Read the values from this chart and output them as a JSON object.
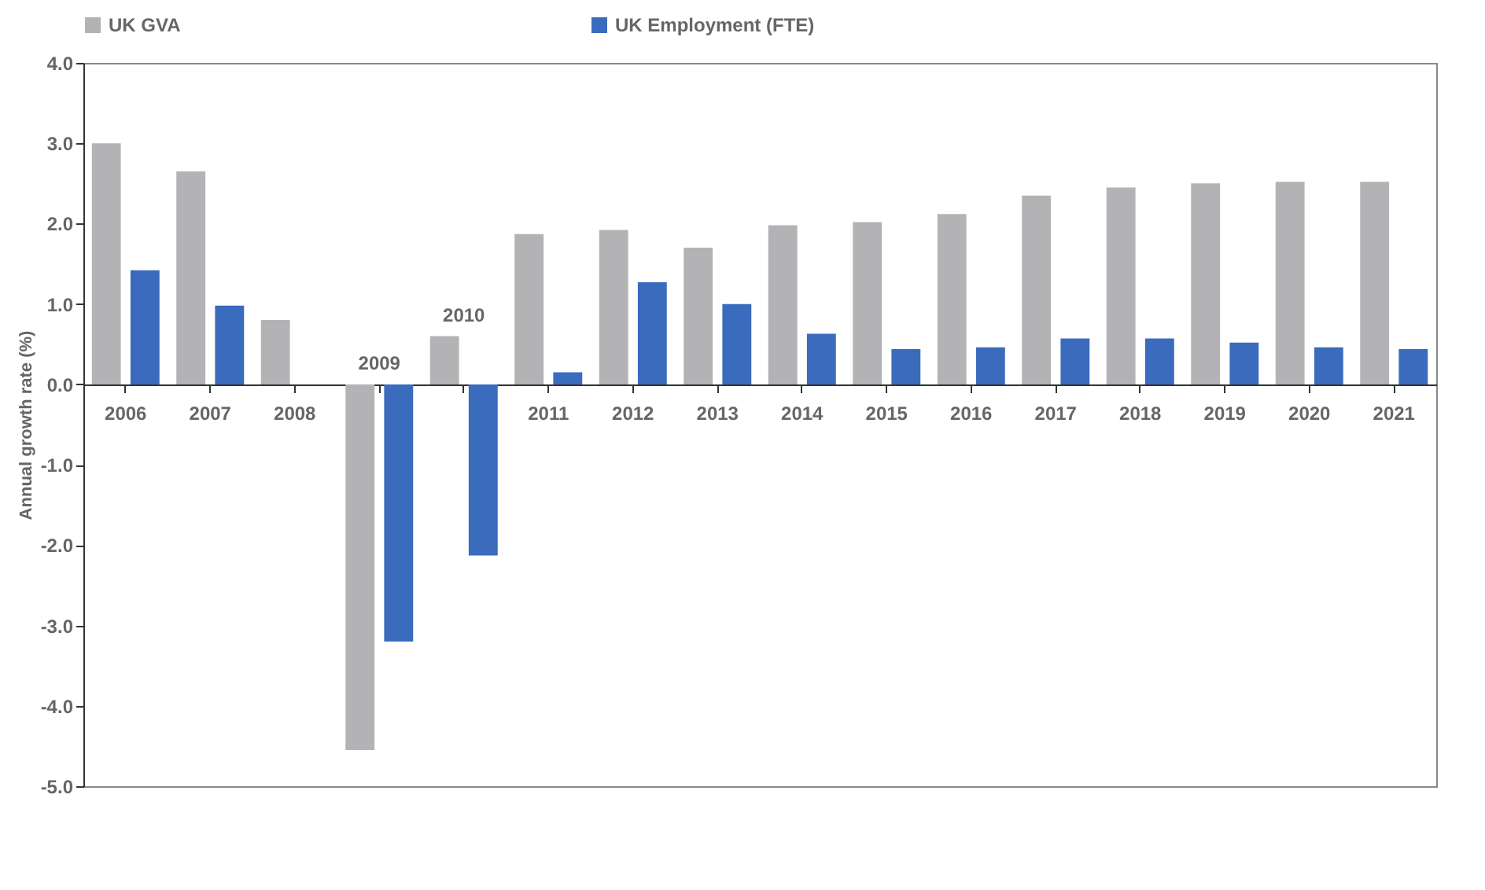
{
  "chart_data": {
    "type": "bar",
    "ylabel": "Annual growth rate (%)",
    "categories": [
      "2006",
      "2007",
      "2008",
      "2009",
      "2010",
      "2011",
      "2012",
      "2013",
      "2014",
      "2015",
      "2016",
      "2017",
      "2018",
      "2019",
      "2020",
      "2021"
    ],
    "series": [
      {
        "name": "UK GVA",
        "color": "#b3b3b6",
        "values": [
          3.0,
          2.65,
          0.8,
          -4.55,
          0.6,
          1.87,
          1.92,
          1.7,
          1.98,
          2.02,
          2.12,
          2.35,
          2.45,
          2.5,
          2.52,
          2.52
        ]
      },
      {
        "name": "UK Employment (FTE)",
        "color": "#3a6bbd",
        "values": [
          1.42,
          0.98,
          0.0,
          -3.2,
          -2.13,
          0.15,
          1.27,
          1.0,
          0.63,
          0.44,
          0.46,
          0.57,
          0.57,
          0.52,
          0.46,
          0.44
        ]
      }
    ],
    "ylim": [
      -5,
      4
    ],
    "yticks": [
      {
        "value": -5,
        "label": "-5.0"
      },
      {
        "value": -4,
        "label": "-4.0"
      },
      {
        "value": -3,
        "label": "-3.0"
      },
      {
        "value": -2,
        "label": "-2.0"
      },
      {
        "value": -1,
        "label": "-1.0"
      },
      {
        "value": 0,
        "label": "0.0"
      },
      {
        "value": 1,
        "label": "1.0"
      },
      {
        "value": 2,
        "label": "2.0"
      },
      {
        "value": 3,
        "label": "3.0"
      },
      {
        "value": 4,
        "label": "4.0"
      }
    ],
    "legend": "top"
  }
}
